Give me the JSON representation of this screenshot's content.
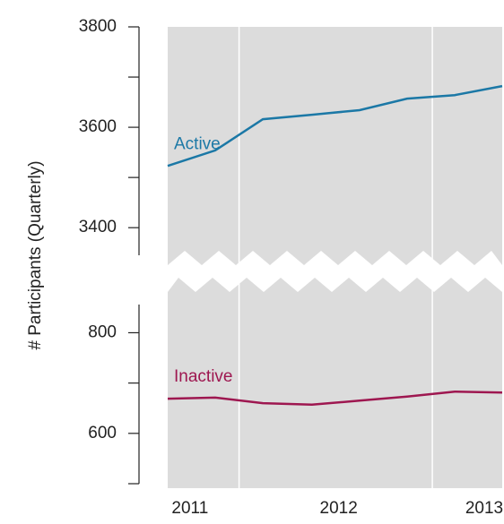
{
  "chart_data": {
    "type": "line",
    "y_label": "# Participants (Quarterly)",
    "x": [
      2010.85,
      2011.17,
      2011.49,
      2011.82,
      2012.14,
      2012.46,
      2012.78,
      2013.1
    ],
    "xlim": [
      2010.85,
      2013.1
    ],
    "xticks": [
      2011,
      2012,
      2013
    ],
    "xgridlines": [
      2011.33,
      2012.63
    ],
    "panels": [
      {
        "ylim": [
          3345,
          3800
        ],
        "yticks": [
          3400,
          3600,
          3800
        ],
        "yminorticks": [
          3500,
          3700
        ]
      },
      {
        "ylim": [
          500,
          856
        ],
        "yticks": [
          600,
          800
        ],
        "yminorticks": [
          500,
          700
        ]
      }
    ],
    "series": [
      {
        "name": "Active",
        "color": "#1b78a6",
        "panel": 0,
        "values": [
          3523,
          3554,
          3616,
          3625,
          3634,
          3657,
          3664,
          3682
        ]
      },
      {
        "name": "Inactive",
        "color": "#9e1750",
        "panel": 1,
        "values": [
          669,
          671,
          660,
          657,
          665,
          673,
          683,
          681
        ]
      }
    ]
  }
}
